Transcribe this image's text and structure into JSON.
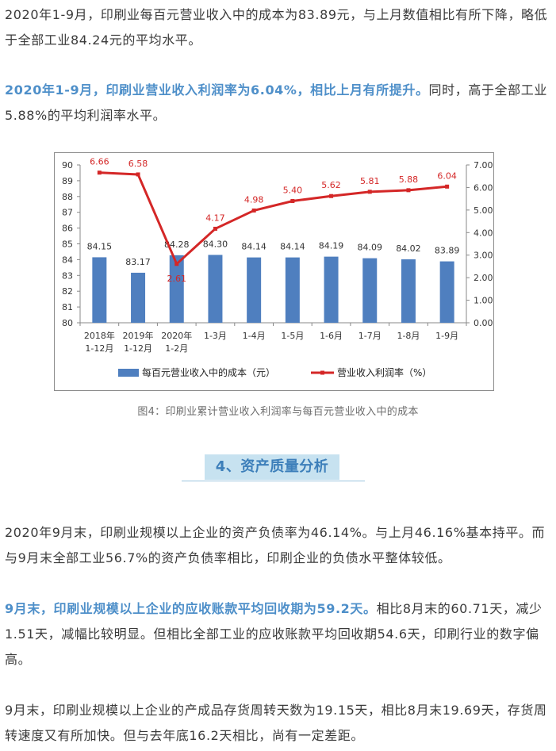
{
  "paragraph1": "2020年1-9月，印刷业每百元营业收入中的成本为83.89元，与上月数值相比有所下降，略低于全部工业84.24元的平均水平。",
  "paragraph2": {
    "highlight": "2020年1-9月，印刷业营业收入利润率为6.04%，相比上月有所提升。",
    "rest": "同时，高于全部工业5.88%的平均利润率水平。"
  },
  "figure_caption": "图4：印刷业累计营业收入利润率与每百元营业收入中的成本",
  "section": {
    "title": "4、资产质量分析"
  },
  "paragraph3": "2020年9月末，印刷业规模以上企业的资产负债率为46.14%。与上月46.16%基本持平。而与9月末全部工业56.7%的资产负债率相比，印刷企业的负债水平整体较低。",
  "paragraph4": {
    "highlight": "9月末，印刷业规模以上企业的应收账款平均回收期为59.2天。",
    "rest": "相比8月末的60.71天，减少1.51天，减幅比较明显。但相比全部工业的应收账款平均回收期54.6天，印刷行业的数字偏高。"
  },
  "paragraph5": "9月末，印刷业规模以上企业的产成品存货周转天数为19.15天，相比8月末19.69天，存货周转速度又有所加快。但与去年底16.2天相比，尚有一定差距。",
  "colors": {
    "highlight": "#4e8fc9",
    "bar": "#4f7fbf",
    "line": "#d42727",
    "section_bg": "#c7e2f0"
  },
  "chart_data": {
    "type": "bar+line",
    "categories": [
      [
        "2018年",
        "1-12月"
      ],
      [
        "2019年",
        "1-12月"
      ],
      [
        "2020年",
        "1-2月"
      ],
      [
        "1-3月"
      ],
      [
        "1-4月"
      ],
      [
        "1-5月"
      ],
      [
        "1-6月"
      ],
      [
        "1-7月"
      ],
      [
        "1-8月"
      ],
      [
        "1-9月"
      ]
    ],
    "series": [
      {
        "name": "每百元营业收入中的成本（元）",
        "kind": "bar",
        "axis": "left",
        "values": [
          84.15,
          83.17,
          84.28,
          84.3,
          84.14,
          84.14,
          84.19,
          84.09,
          84.02,
          83.89
        ],
        "labels": [
          "84.15",
          "83.17",
          "84.28",
          "84.30",
          "84.14",
          "84.14",
          "84.19",
          "84.09",
          "84.02",
          "83.89"
        ]
      },
      {
        "name": "营业收入利润率（%）",
        "kind": "line",
        "axis": "right",
        "values": [
          6.66,
          6.58,
          2.61,
          4.17,
          4.98,
          5.4,
          5.62,
          5.81,
          5.88,
          6.04
        ],
        "labels": [
          "6.66",
          "6.58",
          "2.61",
          "4.17",
          "4.98",
          "5.40",
          "5.62",
          "5.81",
          "5.88",
          "6.04"
        ]
      }
    ],
    "y_left": {
      "min": 80,
      "max": 90,
      "step": 1,
      "ticks": [
        "80",
        "81",
        "82",
        "83",
        "84",
        "85",
        "86",
        "87",
        "88",
        "89",
        "90"
      ]
    },
    "y_right": {
      "min": 0,
      "max": 7,
      "step": 1,
      "ticks": [
        "0.00",
        "1.00",
        "2.00",
        "3.00",
        "4.00",
        "5.00",
        "6.00",
        "7.00"
      ]
    },
    "grid": false,
    "legend_position": "bottom"
  }
}
